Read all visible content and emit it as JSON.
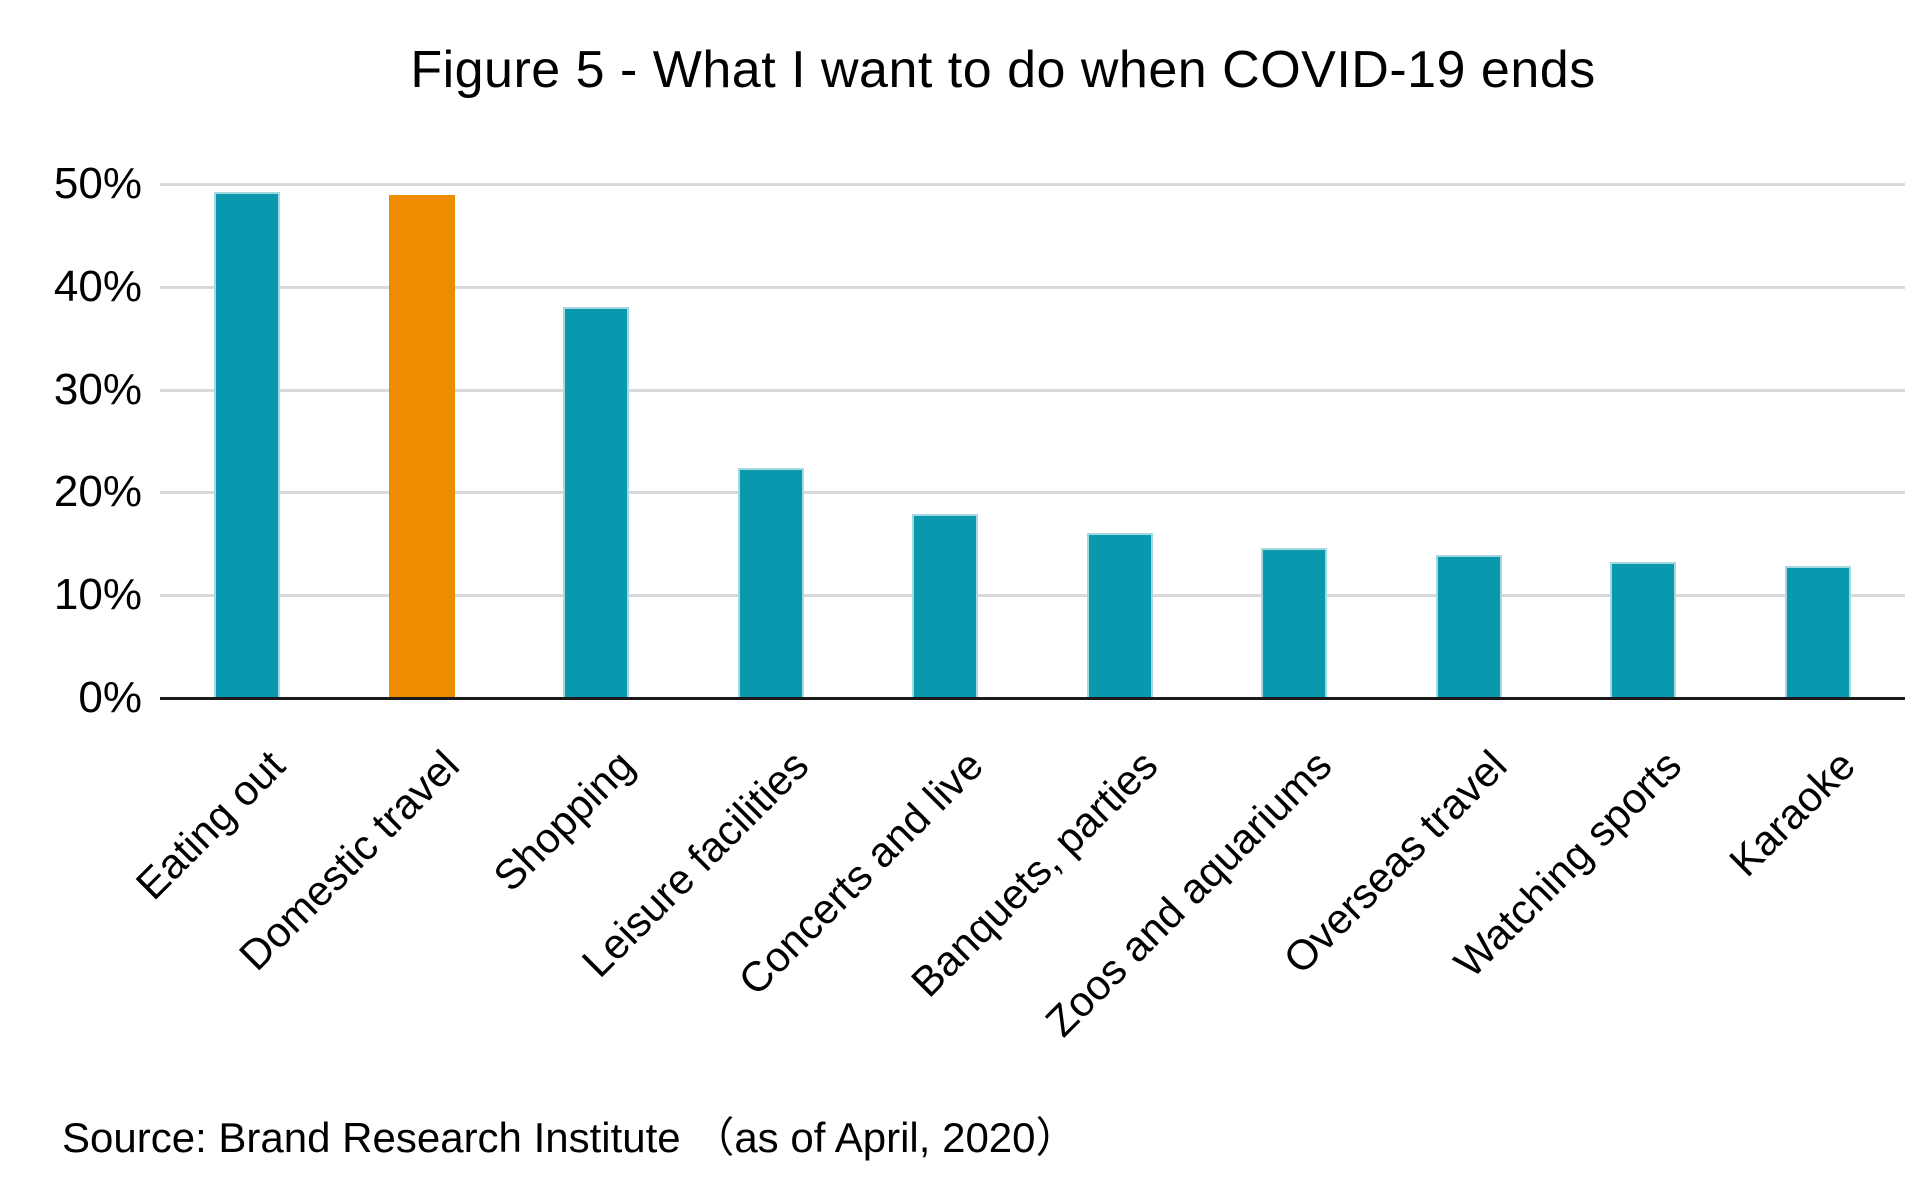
{
  "title": "Figure 5 - What I want to do when COVID-19 ends",
  "source": "Source: Brand Research Institute （as of April, 2020）",
  "chart_data": {
    "type": "bar",
    "title": "Figure 5 - What I want to do when COVID-19 ends",
    "categories": [
      "Eating out",
      "Domestic travel",
      "Shopping",
      "Leisure facilities",
      "Concerts and live",
      "Banquets, parties",
      "Zoos and aquariums",
      "Overseas travel",
      "Watching sports",
      "Karaoke"
    ],
    "values": [
      49.2,
      48.9,
      38.0,
      22.4,
      17.9,
      16.1,
      14.6,
      13.9,
      13.2,
      12.8
    ],
    "unit": "%",
    "xlabel": "",
    "ylabel": "",
    "ylim": [
      0,
      50
    ],
    "yticks": [
      0,
      10,
      20,
      30,
      40,
      50
    ],
    "ytick_labels": [
      "0%",
      "10%",
      "20%",
      "30%",
      "40%",
      "50%"
    ],
    "grid": "horizontal",
    "legend": "none",
    "x_label_rotation_deg": -45,
    "bar_color_default": "#0a98ae",
    "bar_border_default": "#a5d8e0",
    "bar_color_highlight": "#ee8c00",
    "highlight_index": 1,
    "highlight_category": "Domestic travel",
    "gridline_color": "#d9d9d9",
    "axis_color": "#1a1a1a"
  }
}
